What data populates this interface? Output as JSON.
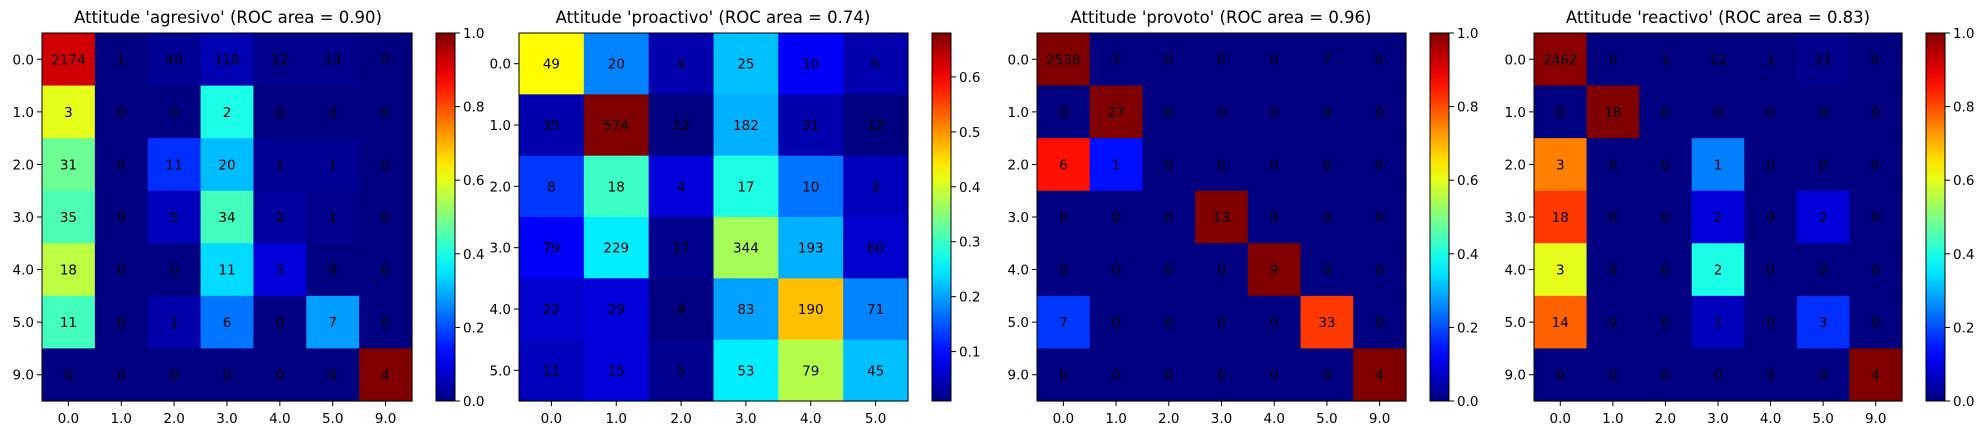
{
  "figure": {
    "background": "#ffffff"
  },
  "chart_data": [
    {
      "type": "heatmap",
      "title": "Attitude 'agresivo' (ROC area = 0.90)",
      "x_categories": [
        "0.0",
        "1.0",
        "2.0",
        "3.0",
        "4.0",
        "5.0",
        "9.0"
      ],
      "y_categories": [
        "0.0",
        "1.0",
        "2.0",
        "3.0",
        "4.0",
        "5.0",
        "9.0"
      ],
      "cells": [
        [
          2174,
          1,
          40,
          118,
          12,
          13,
          0
        ],
        [
          3,
          0,
          0,
          2,
          0,
          0,
          0
        ],
        [
          31,
          0,
          11,
          20,
          1,
          1,
          0
        ],
        [
          35,
          0,
          5,
          34,
          2,
          1,
          0
        ],
        [
          18,
          0,
          0,
          11,
          3,
          0,
          0
        ],
        [
          11,
          0,
          1,
          6,
          0,
          7,
          0
        ],
        [
          0,
          0,
          0,
          0,
          0,
          0,
          4
        ]
      ],
      "normalized": [
        [
          0.92,
          0.0,
          0.02,
          0.05,
          0.01,
          0.01,
          0.0
        ],
        [
          0.6,
          0.0,
          0.0,
          0.4,
          0.0,
          0.0,
          0.0
        ],
        [
          0.48,
          0.0,
          0.17,
          0.31,
          0.02,
          0.02,
          0.0
        ],
        [
          0.45,
          0.0,
          0.06,
          0.44,
          0.03,
          0.01,
          0.0
        ],
        [
          0.56,
          0.0,
          0.0,
          0.34,
          0.09,
          0.0,
          0.0
        ],
        [
          0.44,
          0.0,
          0.04,
          0.24,
          0.0,
          0.28,
          0.0
        ],
        [
          0.0,
          0.0,
          0.0,
          0.0,
          0.0,
          0.0,
          1.0
        ]
      ],
      "colorbar": {
        "ticks": [
          "0.0",
          "0.2",
          "0.4",
          "0.6",
          "0.8",
          "1.0"
        ],
        "tick_values": [
          0,
          0.2,
          0.4,
          0.6,
          0.8,
          1.0
        ],
        "range": [
          0,
          1.0
        ]
      },
      "colormap": "jet"
    },
    {
      "type": "heatmap",
      "title": "Attitude 'proactivo' (ROC area = 0.74)",
      "x_categories": [
        "0.0",
        "1.0",
        "2.0",
        "3.0",
        "4.0",
        "5.0"
      ],
      "y_categories": [
        "0.0",
        "1.0",
        "2.0",
        "3.0",
        "4.0",
        "5.0"
      ],
      "cells": [
        [
          49,
          20,
          4,
          25,
          10,
          5
        ],
        [
          35,
          574,
          12,
          182,
          31,
          12
        ],
        [
          8,
          18,
          4,
          17,
          10,
          3
        ],
        [
          79,
          229,
          17,
          344,
          193,
          60
        ],
        [
          22,
          29,
          4,
          83,
          190,
          71
        ],
        [
          11,
          15,
          5,
          53,
          79,
          45
        ]
      ],
      "normalized": [
        [
          0.43,
          0.18,
          0.04,
          0.22,
          0.09,
          0.04
        ],
        [
          0.04,
          0.68,
          0.01,
          0.21,
          0.04,
          0.01
        ],
        [
          0.13,
          0.3,
          0.07,
          0.28,
          0.17,
          0.05
        ],
        [
          0.09,
          0.25,
          0.02,
          0.37,
          0.21,
          0.06
        ],
        [
          0.06,
          0.07,
          0.01,
          0.2,
          0.47,
          0.18
        ],
        [
          0.05,
          0.07,
          0.02,
          0.25,
          0.38,
          0.22
        ]
      ],
      "colorbar": {
        "ticks": [
          "0.1",
          "0.2",
          "0.3",
          "0.4",
          "0.5",
          "0.6"
        ],
        "tick_values": [
          0.1,
          0.2,
          0.3,
          0.4,
          0.5,
          0.6
        ],
        "range": [
          0.01,
          0.68
        ]
      },
      "colormap": "jet"
    },
    {
      "type": "heatmap",
      "title": "Attitude 'provoto' (ROC area = 0.96)",
      "x_categories": [
        "0.0",
        "1.0",
        "2.0",
        "3.0",
        "4.0",
        "5.0",
        "9.0"
      ],
      "y_categories": [
        "0.0",
        "1.0",
        "2.0",
        "3.0",
        "4.0",
        "5.0",
        "9.0"
      ],
      "cells": [
        [
          2538,
          3,
          0,
          0,
          0,
          7,
          0
        ],
        [
          0,
          27,
          0,
          0,
          0,
          0,
          0
        ],
        [
          6,
          1,
          0,
          0,
          0,
          0,
          0
        ],
        [
          0,
          0,
          0,
          13,
          0,
          0,
          0
        ],
        [
          0,
          0,
          0,
          0,
          9,
          0,
          0
        ],
        [
          7,
          0,
          0,
          0,
          0,
          33,
          0
        ],
        [
          0,
          0,
          0,
          0,
          0,
          0,
          4
        ]
      ],
      "normalized": [
        [
          1.0,
          0.0,
          0.0,
          0.0,
          0.0,
          0.0,
          0.0
        ],
        [
          0.0,
          1.0,
          0.0,
          0.0,
          0.0,
          0.0,
          0.0
        ],
        [
          0.86,
          0.14,
          0.0,
          0.0,
          0.0,
          0.0,
          0.0
        ],
        [
          0.0,
          0.0,
          0.0,
          1.0,
          0.0,
          0.0,
          0.0
        ],
        [
          0.0,
          0.0,
          0.0,
          0.0,
          1.0,
          0.0,
          0.0
        ],
        [
          0.18,
          0.0,
          0.0,
          0.0,
          0.0,
          0.82,
          0.0
        ],
        [
          0.0,
          0.0,
          0.0,
          0.0,
          0.0,
          0.0,
          1.0
        ]
      ],
      "colorbar": {
        "ticks": [
          "0.0",
          "0.2",
          "0.4",
          "0.6",
          "0.8",
          "1.0"
        ],
        "tick_values": [
          0,
          0.2,
          0.4,
          0.6,
          0.8,
          1.0
        ],
        "range": [
          0,
          1.0
        ]
      },
      "colormap": "jet"
    },
    {
      "type": "heatmap",
      "title": "Attitude 'reactivo' (ROC area = 0.83)",
      "x_categories": [
        "0.0",
        "1.0",
        "2.0",
        "3.0",
        "4.0",
        "5.0",
        "9.0"
      ],
      "y_categories": [
        "0.0",
        "1.0",
        "2.0",
        "3.0",
        "4.0",
        "5.0",
        "9.0"
      ],
      "cells": [
        [
          2462,
          0,
          1,
          12,
          1,
          21,
          0
        ],
        [
          0,
          18,
          0,
          0,
          0,
          0,
          0
        ],
        [
          3,
          0,
          0,
          1,
          0,
          0,
          0
        ],
        [
          18,
          0,
          0,
          2,
          0,
          2,
          0
        ],
        [
          3,
          0,
          0,
          2,
          0,
          0,
          0
        ],
        [
          14,
          0,
          0,
          1,
          0,
          3,
          0
        ],
        [
          0,
          0,
          0,
          0,
          0,
          0,
          4
        ]
      ],
      "normalized": [
        [
          0.99,
          0.0,
          0.0,
          0.0,
          0.0,
          0.01,
          0.0
        ],
        [
          0.0,
          1.0,
          0.0,
          0.0,
          0.0,
          0.0,
          0.0
        ],
        [
          0.75,
          0.0,
          0.0,
          0.25,
          0.0,
          0.0,
          0.0
        ],
        [
          0.82,
          0.0,
          0.0,
          0.09,
          0.0,
          0.09,
          0.0
        ],
        [
          0.6,
          0.0,
          0.0,
          0.4,
          0.0,
          0.0,
          0.0
        ],
        [
          0.78,
          0.0,
          0.0,
          0.06,
          0.0,
          0.17,
          0.0
        ],
        [
          0.0,
          0.0,
          0.0,
          0.0,
          0.0,
          0.0,
          1.0
        ]
      ],
      "colorbar": {
        "ticks": [
          "0.0",
          "0.2",
          "0.4",
          "0.6",
          "0.8",
          "1.0"
        ],
        "tick_values": [
          0,
          0.2,
          0.4,
          0.6,
          0.8,
          1.0
        ],
        "range": [
          0,
          1.0
        ]
      },
      "colormap": "jet"
    }
  ]
}
